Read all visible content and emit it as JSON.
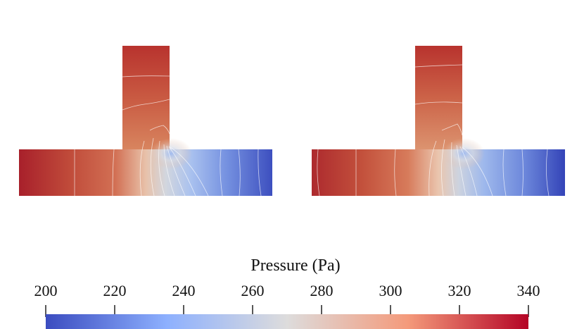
{
  "colorbar": {
    "title": "Pressure (Pa)",
    "ticks": [
      "200",
      "220",
      "240",
      "260",
      "280",
      "300",
      "320",
      "340"
    ],
    "min": 200,
    "max": 340,
    "colors": {
      "low": "#3b4cc0",
      "mid_low": "#8db0fe",
      "mid": "#dddcdc",
      "mid_high": "#f49a7b",
      "high": "#b40426"
    }
  },
  "panels": [
    {
      "name": "left-tee-pressure-field"
    },
    {
      "name": "right-tee-pressure-field"
    }
  ]
}
